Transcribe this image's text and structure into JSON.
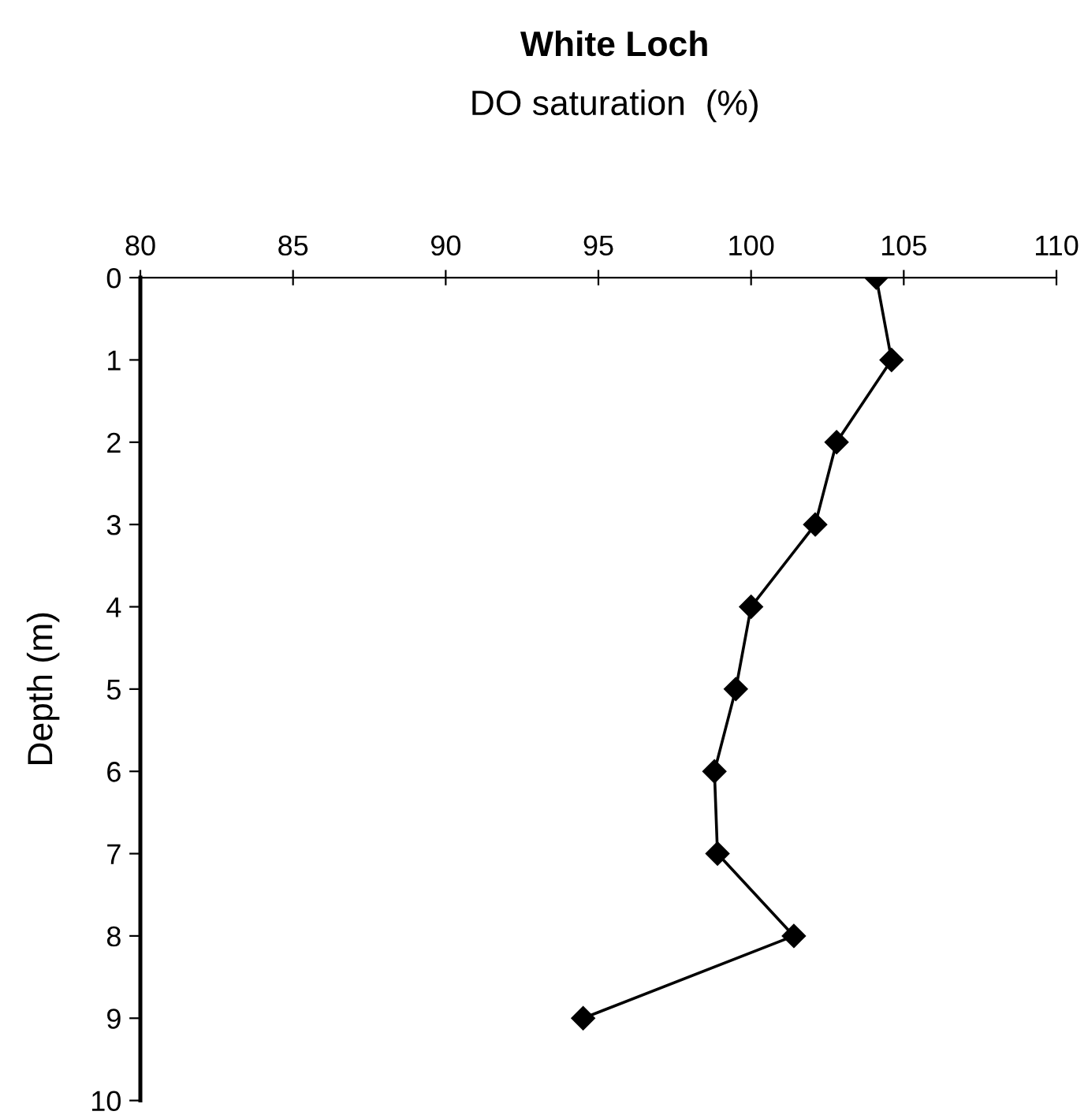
{
  "chart_data": {
    "type": "line",
    "title": "White Loch",
    "xlabel": "DO saturation  (%)",
    "ylabel": "Depth (m)",
    "series": [
      {
        "color": "#000000",
        "x": [
          104.1,
          104.6,
          102.8,
          102.1,
          100.0,
          99.5,
          98.8,
          98.9,
          101.4,
          94.5
        ],
        "values": [
          0,
          1,
          2,
          3,
          4,
          5,
          6,
          7,
          8,
          9
        ]
      }
    ],
    "xlim": [
      80,
      110
    ],
    "xticks": [
      80,
      85,
      90,
      95,
      100,
      105,
      110
    ],
    "ylim": [
      10,
      0
    ],
    "yticks": [
      0,
      1,
      2,
      3,
      4,
      5,
      6,
      7,
      8,
      9,
      10
    ],
    "marker": "diamond",
    "line_style": "solid",
    "grid": false,
    "legend": false
  }
}
